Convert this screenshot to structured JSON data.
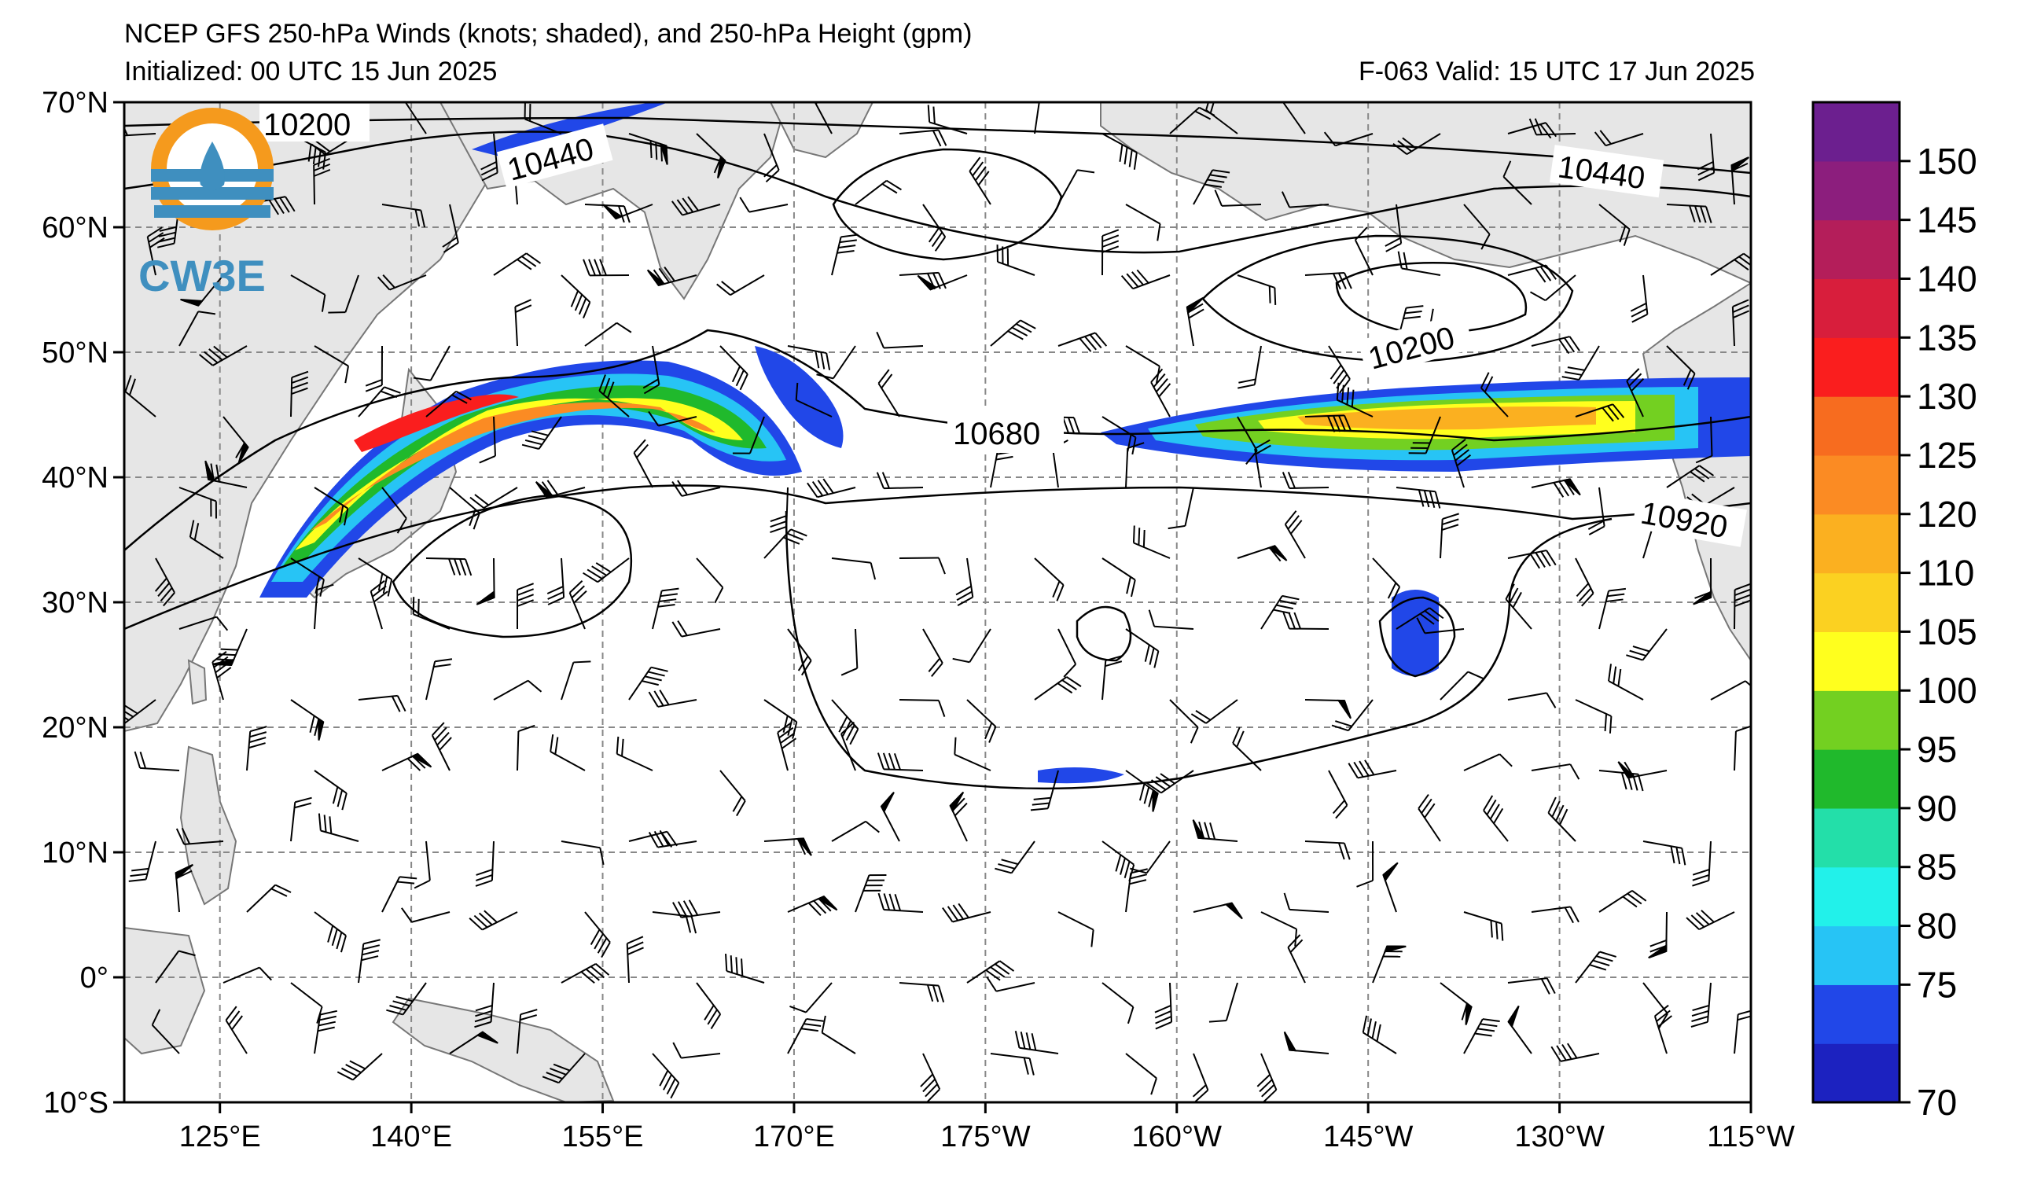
{
  "header": {
    "title": "NCEP GFS 250-hPa Winds (knots; shaded), and 250-hPa Height (gpm)",
    "initialized": "Initialized: 00 UTC 15 Jun 2025",
    "valid": "F-063  Valid: 15 UTC 17 Jun 2025"
  },
  "logo": {
    "text": "CW3E"
  },
  "map": {
    "region": "North Pacific",
    "lat_labels": [
      "70°N",
      "60°N",
      "50°N",
      "40°N",
      "30°N",
      "20°N",
      "10°N",
      "0°",
      "10°S"
    ],
    "lon_labels": [
      "125°E",
      "140°E",
      "155°E",
      "170°E",
      "175°W",
      "160°W",
      "145°W",
      "130°W",
      "115°W"
    ],
    "land_color": "#e6e6e6",
    "ocean_color": "#ffffff",
    "grid_style": "dashed gray"
  },
  "contours": {
    "labels": [
      {
        "text": "10200",
        "where": "northwest"
      },
      {
        "text": "10440",
        "where": "northwest"
      },
      {
        "text": "10440",
        "where": "northeast"
      },
      {
        "text": "10200",
        "where": "gulf of alaska low"
      },
      {
        "text": "10680",
        "where": "central"
      },
      {
        "text": "10920",
        "where": "east"
      }
    ]
  },
  "colorbar": {
    "units": "knots",
    "ticks": [
      "150",
      "145",
      "140",
      "135",
      "130",
      "125",
      "120",
      "110",
      "105",
      "100",
      "95",
      "90",
      "85",
      "80",
      "75",
      "70"
    ],
    "colors": [
      "#1c22c0",
      "#2147e8",
      "#27c4f5",
      "#22f1ea",
      "#23dfa9",
      "#20b92c",
      "#73d021",
      "#ffff1e",
      "#fbd121",
      "#fbb020",
      "#fb8b23",
      "#f76c1f",
      "#fa1e1e",
      "#d81e3c",
      "#b41e5a",
      "#8c1e7d",
      "#6c1f8f"
    ]
  }
}
